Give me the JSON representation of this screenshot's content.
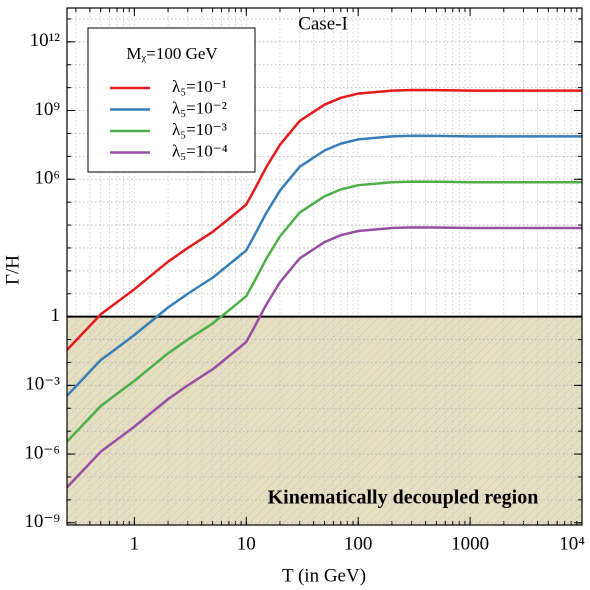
{
  "chart_data": {
    "type": "line",
    "title": "Case-I",
    "annotation": "Kinematically decoupled region",
    "x_label": "T (in GeV)",
    "y_label": "Γ/H",
    "legend_title": "Mᵪ=100 GeV",
    "legend_position": "upper left",
    "xscale": "log",
    "yscale": "log",
    "grid": true,
    "threshold": 1,
    "shade_color": "#e6dfc3",
    "xlim": [
      0.25,
      10000
    ],
    "ylim": [
      8e-10,
      30000000000000.0
    ],
    "xticks": [
      1,
      10,
      100,
      1000,
      {
        "value": 10000,
        "label": "10⁴"
      }
    ],
    "yticks": [
      {
        "value": 1e-09,
        "label": "10⁻⁹"
      },
      {
        "value": 1e-06,
        "label": "10⁻⁶"
      },
      {
        "value": 0.001,
        "label": "10⁻³"
      },
      1,
      {
        "value": 1000000.0,
        "label": "10⁶"
      },
      {
        "value": 1000000000.0,
        "label": "10⁹"
      },
      {
        "value": 1000000000000.0,
        "label": "10¹²"
      }
    ],
    "x": [
      0.25,
      0.5,
      1,
      2,
      3,
      5,
      8,
      10,
      12,
      15,
      20,
      30,
      50,
      70,
      100,
      200,
      300,
      500,
      1000,
      3000,
      10000
    ],
    "series": [
      {
        "name": "λ₅=10⁻¹",
        "color": "#e41a1c",
        "values": [
          0.035,
          1.26,
          15.8,
          251,
          1000,
          5000,
          32000,
          79000,
          400000,
          3200000,
          32000000,
          350000000,
          1800000000,
          3600000000,
          5500000000,
          7400000000,
          7900000000,
          7800000000,
          7400000000,
          7400000000,
          7400000000
        ]
      },
      {
        "name": "λ₅=10⁻²",
        "color": "#377eb8",
        "values": [
          0.00035,
          0.0126,
          0.158,
          2.51,
          10,
          50,
          320,
          790,
          4000,
          32000,
          320000,
          3500000,
          18000000,
          36000000,
          55000000,
          74000000,
          79000000,
          78000000,
          74000000,
          74000000,
          74000000
        ]
      },
      {
        "name": "λ₅=10⁻³",
        "color": "#4daf4a",
        "values": [
          3.5e-06,
          0.000126,
          0.00158,
          0.0251,
          0.1,
          0.5,
          3.2,
          7.9,
          40,
          320,
          3200,
          35000,
          180000,
          360000,
          550000,
          740000,
          790000,
          780000,
          740000,
          740000,
          740000
        ]
      },
      {
        "name": "λ₅=10⁻⁴",
        "color": "#984ea3",
        "values": [
          3.5e-08,
          1.26e-06,
          1.58e-05,
          0.000251,
          0.001,
          0.005,
          0.032,
          0.079,
          0.4,
          3.2,
          32,
          350,
          1800,
          3600,
          5500,
          7400,
          7900,
          7800,
          7400,
          7400,
          7400
        ]
      }
    ]
  }
}
